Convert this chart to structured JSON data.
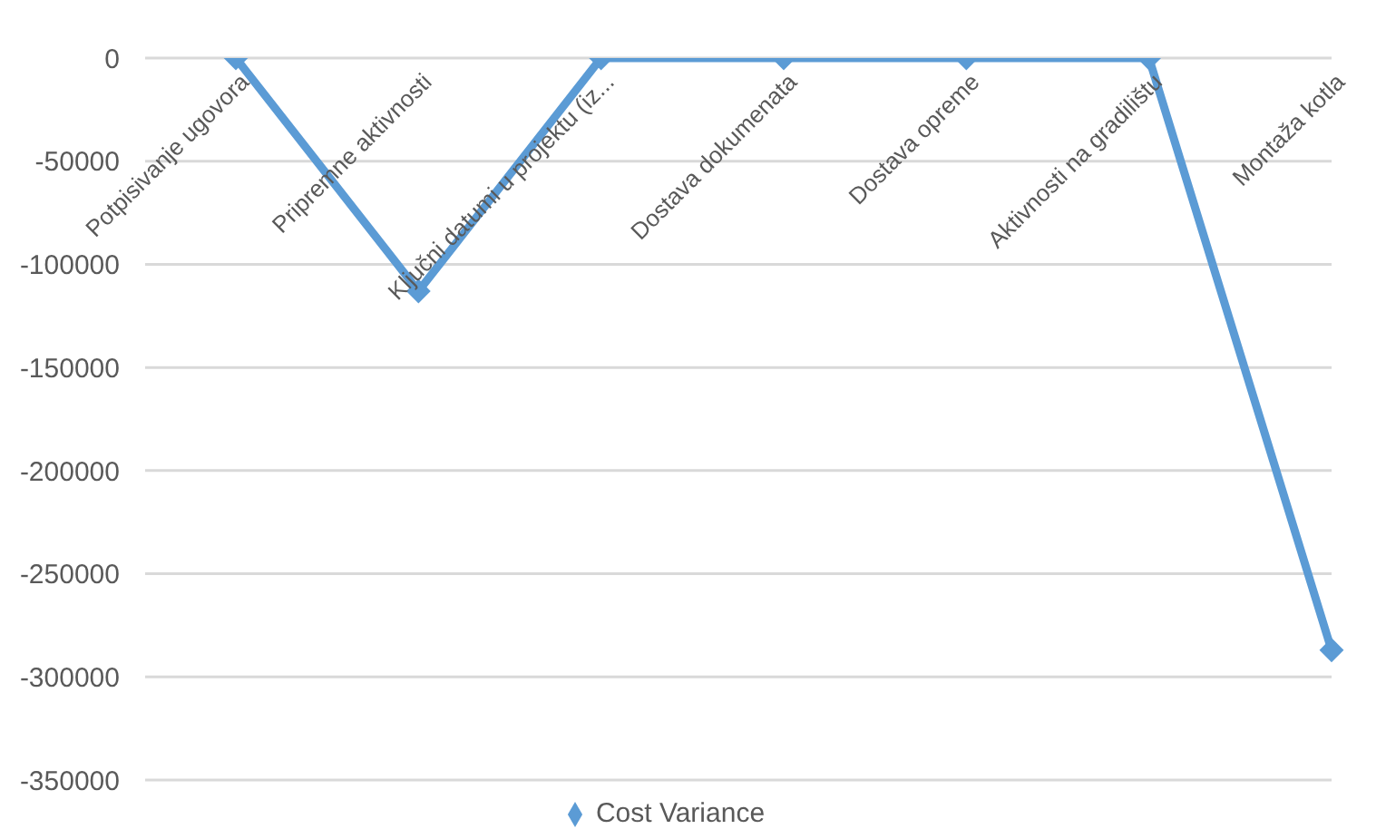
{
  "chart_data": {
    "type": "line",
    "categories": [
      "Potpisivanje ugovora",
      "Pripremne aktivnosti",
      "Ključni datumi u projektu (iz...",
      "Dostava dokumenata",
      "Dostava opreme",
      "Aktivnosti na gradilištu",
      "Montaža kotla"
    ],
    "series": [
      {
        "name": "Cost Variance",
        "color": "#5b9bd5",
        "values": [
          0,
          -113000,
          0,
          0,
          0,
          0,
          -287000
        ]
      }
    ],
    "ylim": [
      -350000,
      0
    ],
    "yticks": [
      0,
      -50000,
      -100000,
      -150000,
      -200000,
      -250000,
      -300000,
      -350000
    ],
    "grid": "y",
    "legend": "bottom",
    "marker": "diamond",
    "line_style": "solid"
  }
}
